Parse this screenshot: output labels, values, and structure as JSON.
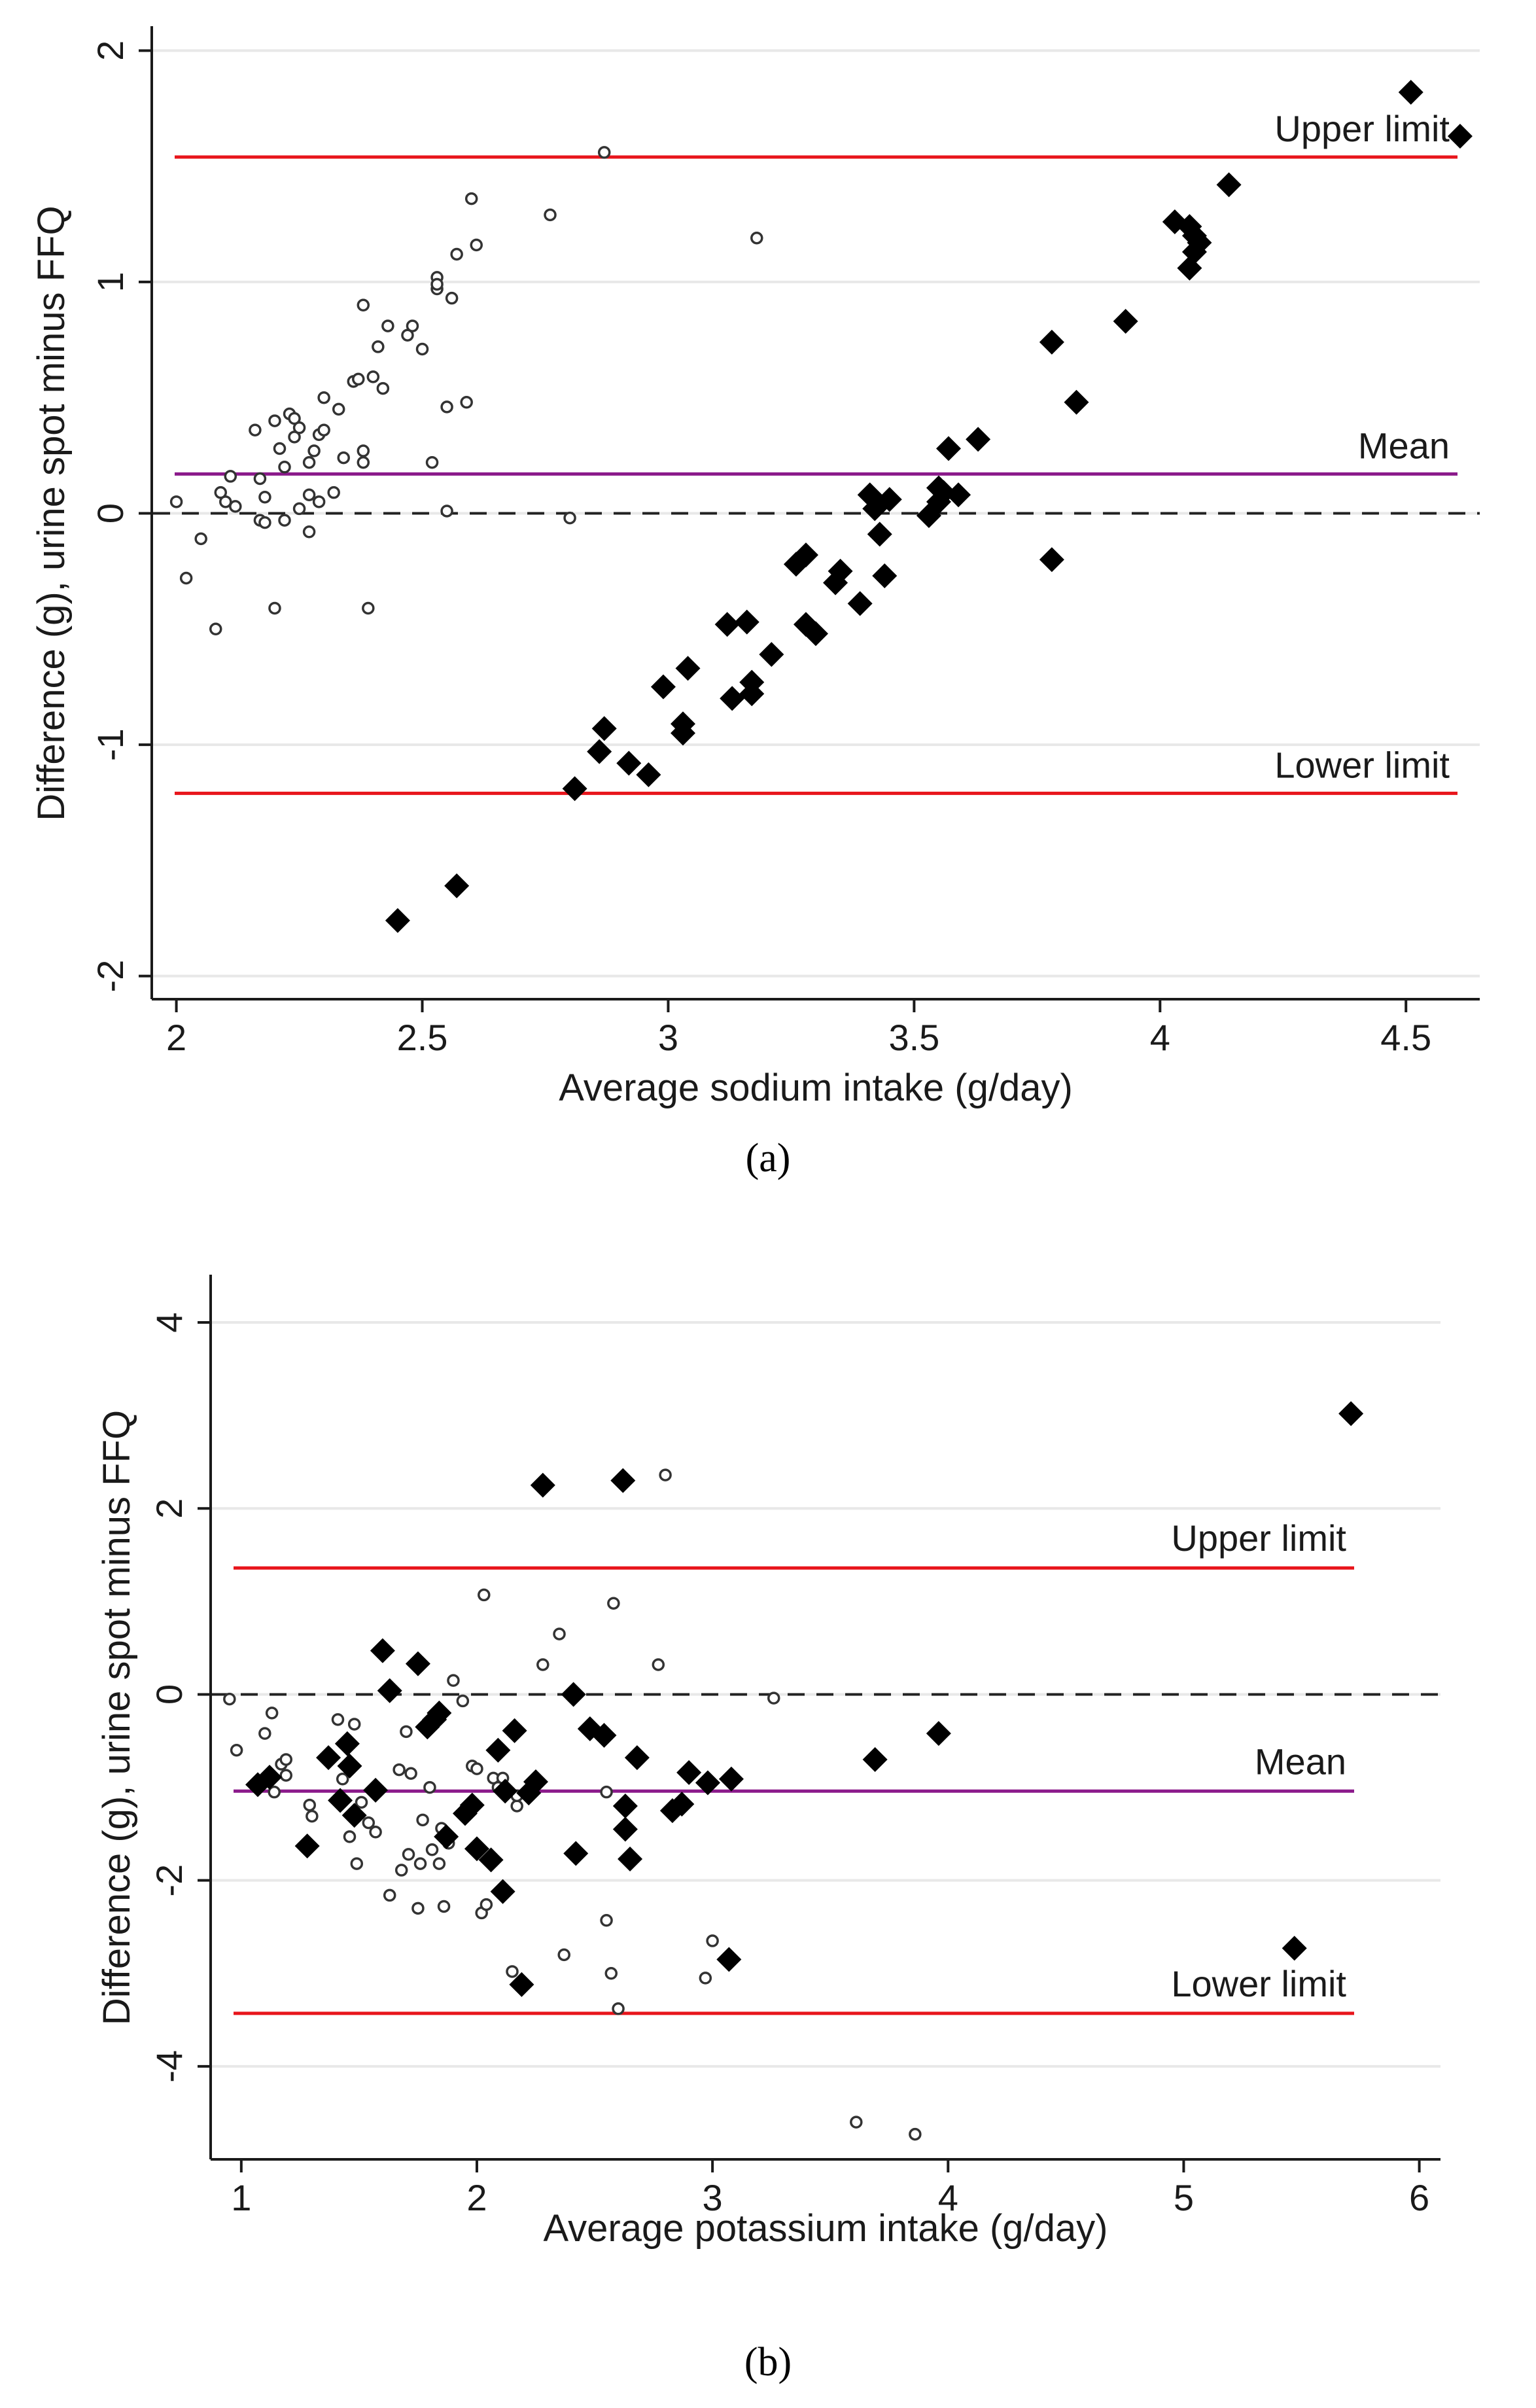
{
  "chart_data": [
    {
      "type": "scatter",
      "panel_label": "(a)",
      "title": "",
      "xlabel": "Average sodium intake (g/day)",
      "ylabel": "Difference (g), urine spot minus FFQ",
      "xlim": [
        1.95,
        4.65
      ],
      "ylim": [
        -2.1,
        2.1
      ],
      "xticks": [
        "2",
        "2.5",
        "3",
        "3.5",
        "4",
        "4.5"
      ],
      "xtick_values": [
        2,
        2.5,
        3,
        3.5,
        4,
        4.5
      ],
      "yticks": [
        "-2",
        "-1",
        "0",
        "1",
        "2"
      ],
      "ytick_values": [
        -2,
        -1,
        0,
        1,
        2
      ],
      "grid": true,
      "lines": [
        {
          "name": "upper",
          "label": "Upper limit",
          "y": 1.54,
          "color": "#e8151b",
          "style": "solid"
        },
        {
          "name": "mean",
          "label": "Mean",
          "y": 0.17,
          "color": "#8b1a8b",
          "style": "solid"
        },
        {
          "name": "zero",
          "label": "",
          "y": 0,
          "color": "#222222",
          "style": "dashed"
        },
        {
          "name": "lower",
          "label": "Lower limit",
          "y": -1.21,
          "color": "#e8151b",
          "style": "solid"
        }
      ],
      "series": [
        {
          "name": "hollow-circles",
          "marker": "circle",
          "points": [
            [
              2.0,
              0.05
            ],
            [
              2.02,
              -0.28
            ],
            [
              2.05,
              -0.11
            ],
            [
              2.08,
              -0.5
            ],
            [
              2.09,
              0.09
            ],
            [
              2.1,
              0.05
            ],
            [
              2.11,
              0.16
            ],
            [
              2.12,
              0.03
            ],
            [
              2.16,
              0.36
            ],
            [
              2.17,
              -0.03
            ],
            [
              2.17,
              0.15
            ],
            [
              2.18,
              0.07
            ],
            [
              2.18,
              -0.04
            ],
            [
              2.2,
              -0.41
            ],
            [
              2.2,
              0.4
            ],
            [
              2.21,
              0.28
            ],
            [
              2.22,
              0.2
            ],
            [
              2.22,
              -0.03
            ],
            [
              2.23,
              0.43
            ],
            [
              2.24,
              0.41
            ],
            [
              2.24,
              0.33
            ],
            [
              2.25,
              0.37
            ],
            [
              2.25,
              0.02
            ],
            [
              2.27,
              0.22
            ],
            [
              2.27,
              -0.08
            ],
            [
              2.27,
              0.08
            ],
            [
              2.28,
              0.27
            ],
            [
              2.29,
              0.34
            ],
            [
              2.29,
              0.05
            ],
            [
              2.3,
              0.5
            ],
            [
              2.3,
              0.36
            ],
            [
              2.32,
              0.09
            ],
            [
              2.33,
              0.45
            ],
            [
              2.34,
              0.24
            ],
            [
              2.36,
              0.57
            ],
            [
              2.37,
              0.58
            ],
            [
              2.38,
              0.22
            ],
            [
              2.38,
              0.27
            ],
            [
              2.38,
              0.9
            ],
            [
              2.39,
              -0.41
            ],
            [
              2.4,
              0.59
            ],
            [
              2.41,
              0.72
            ],
            [
              2.42,
              0.54
            ],
            [
              2.43,
              0.81
            ],
            [
              2.47,
              0.77
            ],
            [
              2.48,
              0.81
            ],
            [
              2.5,
              0.71
            ],
            [
              2.52,
              0.22
            ],
            [
              2.53,
              1.02
            ],
            [
              2.53,
              0.97
            ],
            [
              2.53,
              0.99
            ],
            [
              2.55,
              0.46
            ],
            [
              2.55,
              0.01
            ],
            [
              2.56,
              0.93
            ],
            [
              2.57,
              1.12
            ],
            [
              2.59,
              0.48
            ],
            [
              2.6,
              1.36
            ],
            [
              2.61,
              1.16
            ],
            [
              2.76,
              1.29
            ],
            [
              2.8,
              -0.02
            ],
            [
              2.87,
              1.56
            ],
            [
              3.18,
              1.19
            ]
          ]
        },
        {
          "name": "filled-diamonds",
          "marker": "diamond",
          "points": [
            [
              2.45,
              -1.76
            ],
            [
              2.57,
              -1.61
            ],
            [
              2.81,
              -1.19
            ],
            [
              2.86,
              -1.03
            ],
            [
              2.87,
              -0.93
            ],
            [
              2.92,
              -1.08
            ],
            [
              2.96,
              -1.13
            ],
            [
              2.99,
              -0.75
            ],
            [
              3.03,
              -0.91
            ],
            [
              3.03,
              -0.95
            ],
            [
              3.04,
              -0.67
            ],
            [
              3.12,
              -0.48
            ],
            [
              3.13,
              -0.8
            ],
            [
              3.16,
              -0.47
            ],
            [
              3.17,
              -0.78
            ],
            [
              3.17,
              -0.73
            ],
            [
              3.21,
              -0.61
            ],
            [
              3.26,
              -0.22
            ],
            [
              3.28,
              -0.18
            ],
            [
              3.28,
              -0.48
            ],
            [
              3.3,
              -0.52
            ],
            [
              3.34,
              -0.3
            ],
            [
              3.35,
              -0.25
            ],
            [
              3.39,
              -0.39
            ],
            [
              3.41,
              0.08
            ],
            [
              3.42,
              0.02
            ],
            [
              3.43,
              -0.09
            ],
            [
              3.44,
              -0.27
            ],
            [
              3.45,
              0.06
            ],
            [
              3.53,
              -0.01
            ],
            [
              3.55,
              0.05
            ],
            [
              3.55,
              0.11
            ],
            [
              3.56,
              0.09
            ],
            [
              3.57,
              0.28
            ],
            [
              3.59,
              0.08
            ],
            [
              3.63,
              0.32
            ],
            [
              3.78,
              0.74
            ],
            [
              3.78,
              -0.2
            ],
            [
              3.83,
              0.48
            ],
            [
              3.93,
              0.83
            ],
            [
              4.03,
              1.26
            ],
            [
              4.06,
              1.24
            ],
            [
              4.06,
              1.06
            ],
            [
              4.07,
              1.2
            ],
            [
              4.07,
              1.13
            ],
            [
              4.08,
              1.17
            ],
            [
              4.14,
              1.42
            ],
            [
              4.51,
              1.82
            ],
            [
              4.61,
              1.63
            ]
          ]
        }
      ]
    },
    {
      "type": "scatter",
      "panel_label": "(b)",
      "title": "",
      "xlabel": "Average potassium intake (g/day)",
      "ylabel": "Difference (g), urine spot minus FFQ",
      "xlim": [
        0.87,
        6.09
      ],
      "ylim": [
        -5.0,
        4.5
      ],
      "xticks": [
        "1",
        "2",
        "3",
        "4",
        "5",
        "6"
      ],
      "xtick_values": [
        1,
        2,
        3,
        4,
        5,
        6
      ],
      "yticks": [
        "-4",
        "-2",
        "0",
        "2",
        "4"
      ],
      "ytick_values": [
        -4,
        -2,
        0,
        2,
        4
      ],
      "grid": true,
      "lines": [
        {
          "name": "upper",
          "label": "Upper limit",
          "y": 1.36,
          "color": "#e8151b",
          "style": "solid"
        },
        {
          "name": "mean",
          "label": "Mean",
          "y": -1.04,
          "color": "#8b1a8b",
          "style": "solid"
        },
        {
          "name": "zero",
          "label": "",
          "y": 0,
          "color": "#222222",
          "style": "dashed"
        },
        {
          "name": "lower",
          "label": "Lower limit",
          "y": -3.43,
          "color": "#e8151b",
          "style": "solid"
        }
      ],
      "series": [
        {
          "name": "hollow-circles",
          "marker": "circle",
          "points": [
            [
              0.95,
              -0.05
            ],
            [
              0.98,
              -0.6
            ],
            [
              1.07,
              -0.98
            ],
            [
              1.1,
              -0.42
            ],
            [
              1.13,
              -0.2
            ],
            [
              1.14,
              -1.05
            ],
            [
              1.17,
              -0.75
            ],
            [
              1.19,
              -0.7
            ],
            [
              1.19,
              -0.87
            ],
            [
              1.29,
              -1.19
            ],
            [
              1.3,
              -1.31
            ],
            [
              1.41,
              -0.27
            ],
            [
              1.43,
              -0.91
            ],
            [
              1.44,
              -0.53
            ],
            [
              1.46,
              -1.53
            ],
            [
              1.48,
              -0.32
            ],
            [
              1.49,
              -1.82
            ],
            [
              1.51,
              -1.16
            ],
            [
              1.54,
              -1.38
            ],
            [
              1.57,
              -1.48
            ],
            [
              1.63,
              -2.16
            ],
            [
              1.67,
              -0.81
            ],
            [
              1.68,
              -1.89
            ],
            [
              1.7,
              -0.4
            ],
            [
              1.71,
              -1.72
            ],
            [
              1.72,
              -0.85
            ],
            [
              1.75,
              -2.3
            ],
            [
              1.76,
              -1.82
            ],
            [
              1.77,
              -1.35
            ],
            [
              1.8,
              -1.0
            ],
            [
              1.81,
              -1.67
            ],
            [
              1.84,
              -1.82
            ],
            [
              1.85,
              -1.44
            ],
            [
              1.86,
              -2.28
            ],
            [
              1.88,
              -1.6
            ],
            [
              1.9,
              0.15
            ],
            [
              1.94,
              -0.07
            ],
            [
              1.96,
              -1.23
            ],
            [
              1.98,
              -0.77
            ],
            [
              2.0,
              -0.8
            ],
            [
              2.02,
              -2.35
            ],
            [
              2.03,
              1.07
            ],
            [
              2.04,
              -2.26
            ],
            [
              2.07,
              -0.9
            ],
            [
              2.09,
              -1.0
            ],
            [
              2.11,
              -0.9
            ],
            [
              2.15,
              -2.98
            ],
            [
              2.17,
              -1.2
            ],
            [
              2.17,
              -1.09
            ],
            [
              2.28,
              0.32
            ],
            [
              2.35,
              0.65
            ],
            [
              2.37,
              -2.8
            ],
            [
              2.55,
              -2.43
            ],
            [
              2.55,
              -1.05
            ],
            [
              2.57,
              -3.0
            ],
            [
              2.58,
              0.98
            ],
            [
              2.6,
              -3.38
            ],
            [
              2.77,
              0.32
            ],
            [
              2.8,
              2.36
            ],
            [
              2.97,
              -3.05
            ],
            [
              3.0,
              -2.65
            ],
            [
              3.26,
              -0.04
            ],
            [
              3.61,
              -4.6
            ],
            [
              3.86,
              -4.73
            ]
          ]
        },
        {
          "name": "filled-diamonds",
          "marker": "diamond",
          "points": [
            [
              1.07,
              -0.97
            ],
            [
              1.12,
              -0.89
            ],
            [
              1.28,
              -1.63
            ],
            [
              1.37,
              -0.68
            ],
            [
              1.42,
              -1.14
            ],
            [
              1.45,
              -0.53
            ],
            [
              1.46,
              -0.77
            ],
            [
              1.48,
              -1.3
            ],
            [
              1.57,
              -1.03
            ],
            [
              1.6,
              0.47
            ],
            [
              1.63,
              0.04
            ],
            [
              1.75,
              0.33
            ],
            [
              1.79,
              -0.35
            ],
            [
              1.82,
              -0.27
            ],
            [
              1.84,
              -0.2
            ],
            [
              1.87,
              -1.53
            ],
            [
              1.95,
              -1.28
            ],
            [
              1.98,
              -1.19
            ],
            [
              2.0,
              -1.66
            ],
            [
              2.06,
              -1.78
            ],
            [
              2.09,
              -0.6
            ],
            [
              2.11,
              -2.12
            ],
            [
              2.12,
              -1.04
            ],
            [
              2.16,
              -0.39
            ],
            [
              2.19,
              -3.12
            ],
            [
              2.22,
              -1.06
            ],
            [
              2.25,
              -0.94
            ],
            [
              2.28,
              2.25
            ],
            [
              2.41,
              0.0
            ],
            [
              2.42,
              -1.71
            ],
            [
              2.48,
              -0.37
            ],
            [
              2.54,
              -0.44
            ],
            [
              2.62,
              2.3
            ],
            [
              2.63,
              -1.2
            ],
            [
              2.63,
              -1.45
            ],
            [
              2.65,
              -1.77
            ],
            [
              2.68,
              -0.68
            ],
            [
              2.83,
              -1.25
            ],
            [
              2.87,
              -1.18
            ],
            [
              2.9,
              -0.84
            ],
            [
              2.98,
              -0.95
            ],
            [
              3.08,
              -0.91
            ],
            [
              3.07,
              -2.85
            ],
            [
              3.69,
              -0.7
            ],
            [
              3.96,
              -0.42
            ],
            [
              5.47,
              -2.73
            ],
            [
              5.71,
              3.02
            ]
          ]
        }
      ]
    }
  ]
}
